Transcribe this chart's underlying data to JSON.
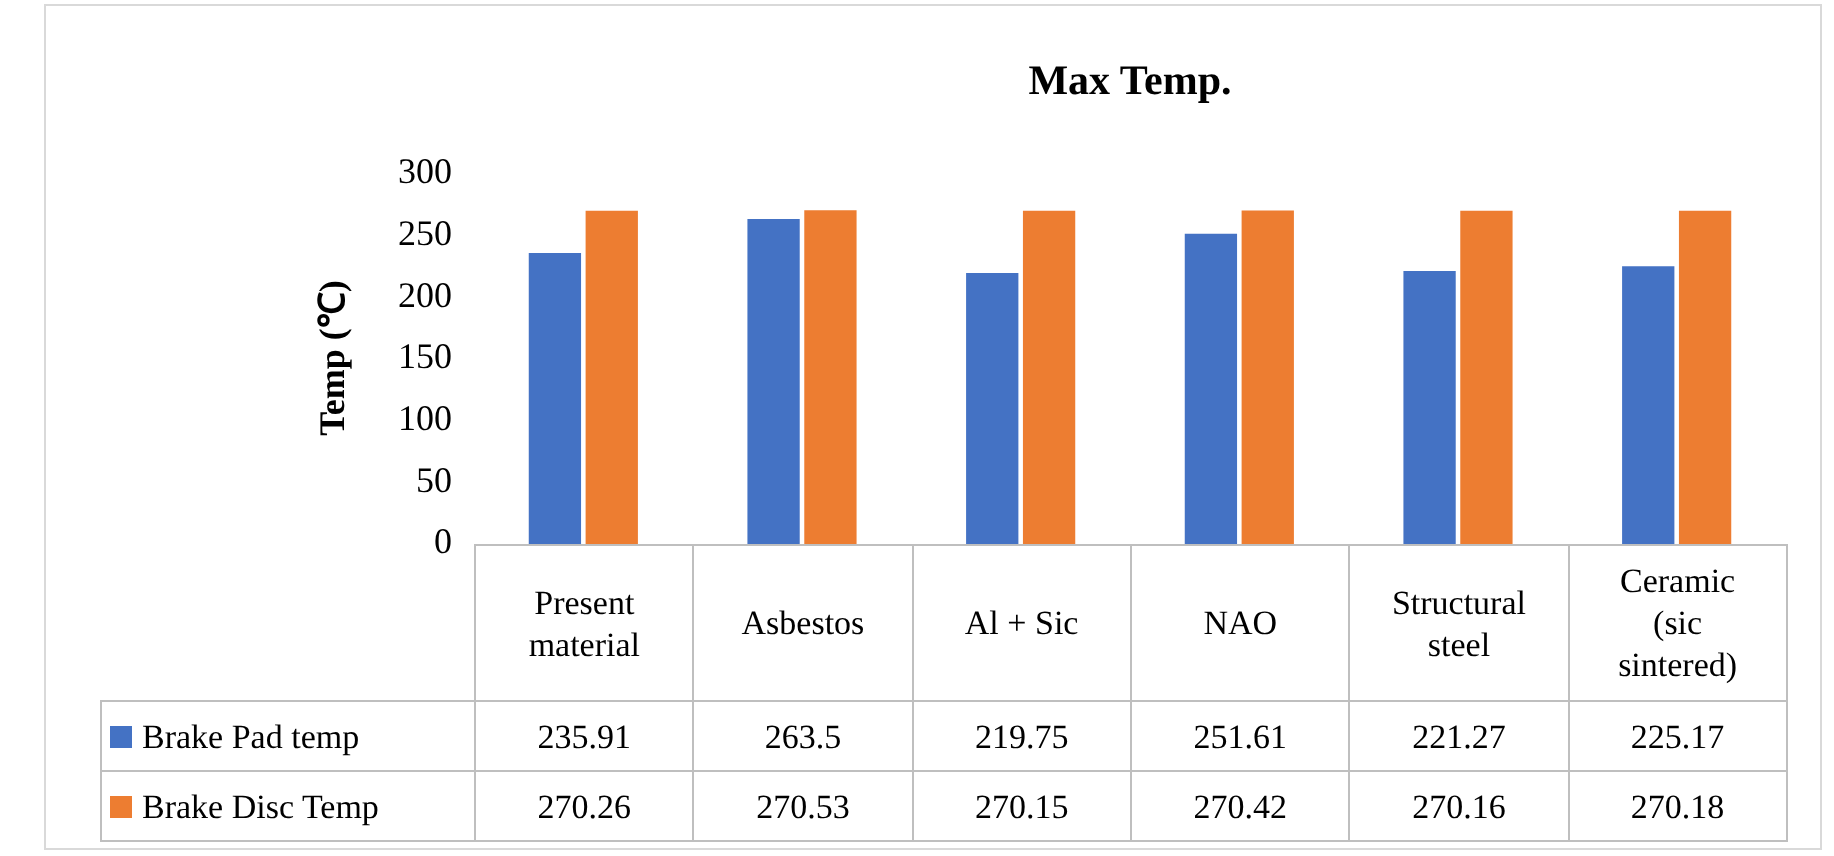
{
  "chart_data": {
    "type": "bar",
    "title": "Max Temp.",
    "ylabel": "Temp (℃)",
    "categories": [
      "Present material",
      "Asbestos",
      "Al + Sic",
      "NAO",
      "Structural steel",
      "Ceramic (sic sintered)"
    ],
    "series": [
      {
        "name": "Brake Pad temp",
        "color": "#4472c4",
        "values": [
          235.91,
          263.5,
          219.75,
          251.61,
          221.27,
          225.17
        ]
      },
      {
        "name": "Brake Disc Temp",
        "color": "#ed7d31",
        "values": [
          270.26,
          270.53,
          270.15,
          270.42,
          270.16,
          270.18
        ]
      }
    ],
    "ylim": [
      0,
      300
    ],
    "yticks": [
      0,
      50,
      100,
      150,
      200,
      250,
      300
    ],
    "data_labels": true,
    "legend": "bottom"
  }
}
